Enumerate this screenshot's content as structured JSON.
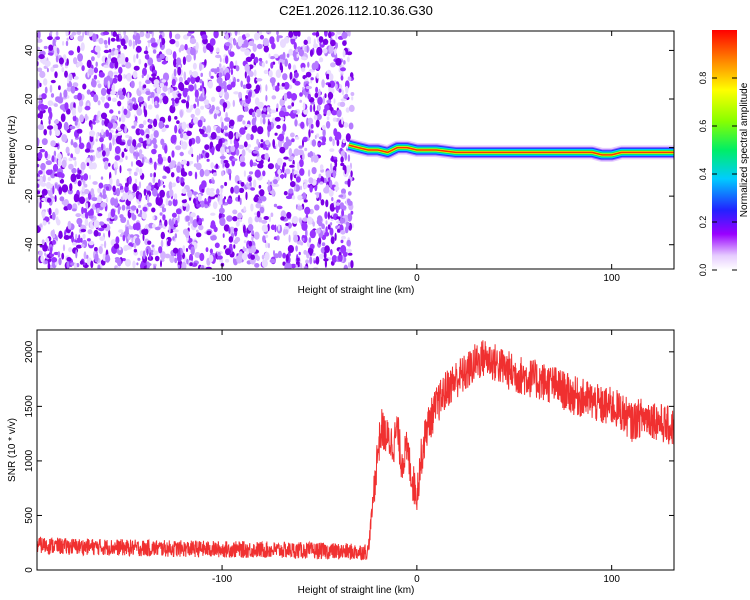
{
  "title": "C2E1.2026.112.10.36.G30",
  "colors": {
    "background": "#ffffff",
    "snr_line": "#f03030",
    "spectrum_speckle": "#7a00e6",
    "axis": "#000000"
  },
  "chart_data": [
    {
      "type": "heatmap",
      "xlabel": "Height of straight line (km)",
      "ylabel": "Frequency (Hz)",
      "xlim": [
        -195,
        132
      ],
      "ylim": [
        -50,
        48
      ],
      "x_ticks": [
        -100,
        0,
        100
      ],
      "y_ticks": [
        -40,
        -20,
        0,
        20,
        40
      ],
      "noise_region_x": [
        -195,
        -33
      ],
      "signal_trace": {
        "x": [
          -35,
          -30,
          -25,
          -20,
          -15,
          -10,
          -5,
          0,
          10,
          20,
          40,
          60,
          80,
          90,
          95,
          100,
          105,
          110,
          120,
          132
        ],
        "frequency": [
          1,
          0,
          -1,
          -1,
          -2,
          0,
          0,
          -1,
          -1,
          -2,
          -2,
          -2,
          -2,
          -2,
          -3,
          -3,
          -2,
          -2,
          -2,
          -2
        ]
      },
      "colorbar": {
        "label": "Normalized spectral amplitude",
        "range": [
          0,
          1
        ],
        "ticks": [
          "0.0",
          "0.2",
          "0.4",
          "0.6",
          "0.8"
        ]
      }
    },
    {
      "type": "line",
      "xlabel": "Height of straight line (km)",
      "ylabel": "SNR (10 * v/v)",
      "xlim": [
        -195,
        132
      ],
      "ylim": [
        0,
        2200
      ],
      "x_ticks": [
        -100,
        0,
        100
      ],
      "y_ticks": [
        0,
        500,
        1000,
        1500,
        2000
      ],
      "series": [
        {
          "x": [
            -195,
            -180,
            -160,
            -140,
            -120,
            -100,
            -80,
            -60,
            -40,
            -30,
            -25,
            -20,
            -18,
            -15,
            -12,
            -10,
            -8,
            -5,
            -2,
            0,
            2,
            5,
            10,
            15,
            20,
            25,
            30,
            35,
            40,
            45,
            50,
            60,
            70,
            80,
            90,
            95,
            100,
            105,
            108,
            110,
            115,
            120,
            125,
            132
          ],
          "values": [
            230,
            215,
            210,
            200,
            195,
            190,
            185,
            180,
            170,
            165,
            170,
            1100,
            1300,
            1200,
            1150,
            1300,
            1000,
            1100,
            800,
            700,
            1000,
            1300,
            1500,
            1650,
            1750,
            1800,
            1900,
            1950,
            1900,
            1850,
            1800,
            1750,
            1700,
            1600,
            1550,
            1500,
            1500,
            1450,
            1400,
            1350,
            1400,
            1400,
            1350,
            1300
          ]
        }
      ]
    }
  ]
}
